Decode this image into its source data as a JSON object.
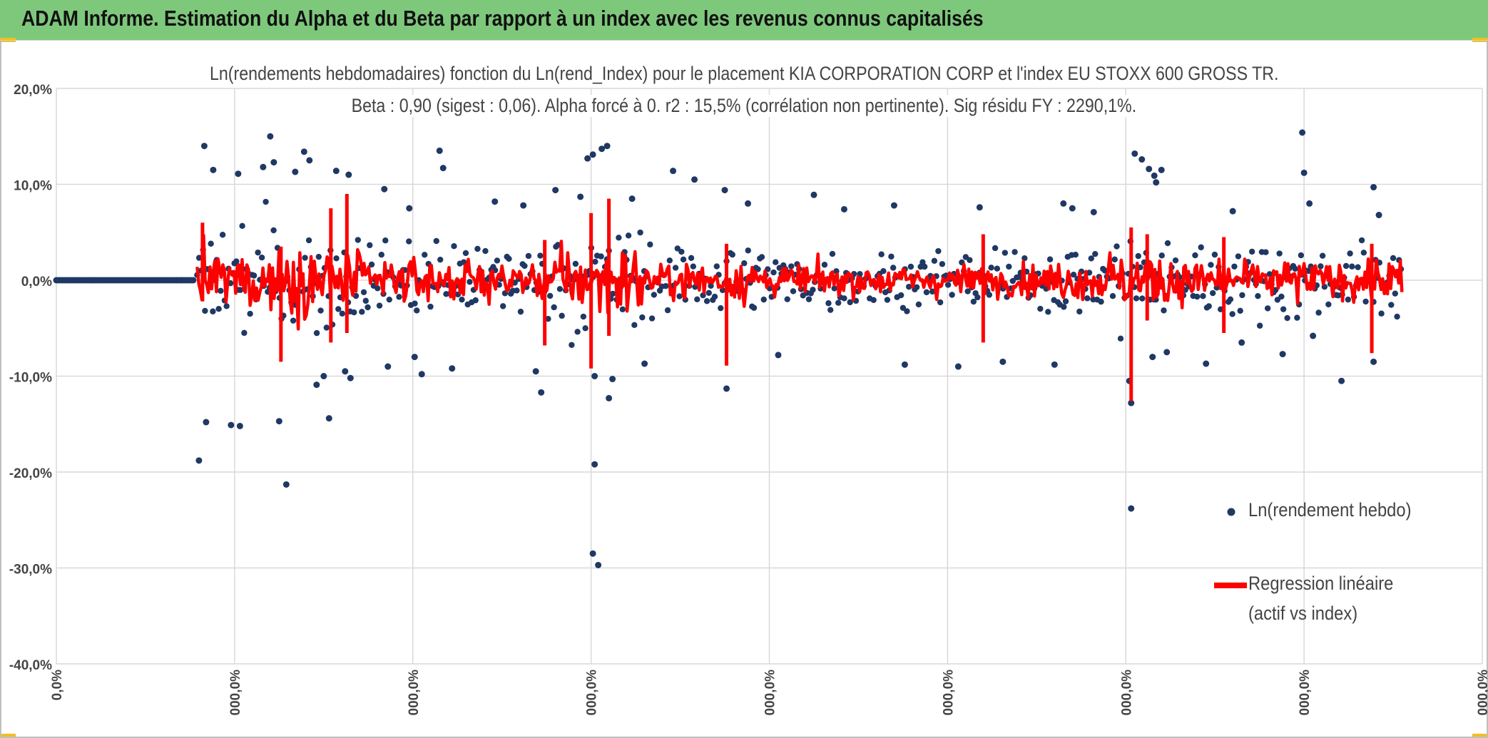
{
  "header": {
    "title": "ADAM Informe. Estimation du Alpha et du Beta par rapport à un index avec les revenus connus capitalisés"
  },
  "chart_data": {
    "type": "scatter",
    "title_line1": "Ln(rendements hebdomadaires) fonction du Ln(rend_Index) pour le placement KIA CORPORATION CORP et l'index EU STOXX 600 GROSS TR.",
    "title_line2": "Beta : 0,90 (sigest : 0,06). Alpha forcé à 0. r2 : 15,5% (corrélation non pertinente). Sig résidu FY : 2290,1%.",
    "y_ticks": [
      "20,0%",
      "10,0%",
      "0,0%",
      "-10,0%",
      "-20,0%",
      "-30,0%",
      "-40,0%"
    ],
    "x_ticks": [
      "0,0%",
      "000,0%",
      "000,0%",
      "000,0%",
      "000,0%",
      "000,0%",
      "000,0%",
      "000,0%",
      "000,0%"
    ],
    "ylim": [
      -40,
      20
    ],
    "x_tick_count": 9,
    "grid": true,
    "legend_position": "right",
    "series": [
      {
        "name": "Ln(rendement hebdo)",
        "kind": "markers",
        "color": "#1f3864",
        "points": [
          [
            8,
            -18.8
          ],
          [
            8.3,
            14.0
          ],
          [
            8.4,
            -14.8
          ],
          [
            8.8,
            11.5
          ],
          [
            9.8,
            -15.1
          ],
          [
            10.2,
            11.1
          ],
          [
            10.3,
            -15.2
          ],
          [
            11.6,
            11.8
          ],
          [
            12.0,
            15.0
          ],
          [
            12.2,
            12.3
          ],
          [
            12.5,
            -14.7
          ],
          [
            12.9,
            -21.3
          ],
          [
            13.4,
            11.3
          ],
          [
            13.9,
            13.4
          ],
          [
            14.2,
            12.5
          ],
          [
            14.6,
            -10.9
          ],
          [
            15.0,
            -10.0
          ],
          [
            15.3,
            -14.4
          ],
          [
            15.7,
            11.4
          ],
          [
            16.2,
            -9.5
          ],
          [
            16.4,
            11.0
          ],
          [
            16.5,
            -10.2
          ],
          [
            20.1,
            -8.0
          ],
          [
            21.5,
            13.5
          ],
          [
            21.7,
            11.7
          ],
          [
            22.2,
            -9.2
          ],
          [
            27.2,
            -11.7
          ],
          [
            29.4,
            8.7
          ],
          [
            29.8,
            12.7
          ],
          [
            30.1,
            13.1
          ],
          [
            30.2,
            -10.0
          ],
          [
            30.4,
            -29.7
          ],
          [
            30.6,
            13.7
          ],
          [
            30.9,
            14.0
          ],
          [
            31.0,
            -12.3
          ],
          [
            31.2,
            -10.3
          ],
          [
            30.1,
            -28.5
          ],
          [
            30.2,
            -19.2
          ],
          [
            32.3,
            8.5
          ],
          [
            34.6,
            11.4
          ],
          [
            35.8,
            10.5
          ],
          [
            37.5,
            9.4
          ],
          [
            37.6,
            -11.3
          ],
          [
            42.5,
            8.9
          ],
          [
            47.0,
            7.8
          ],
          [
            51.8,
            7.6
          ],
          [
            53.1,
            -8.5
          ],
          [
            56.5,
            8.0
          ],
          [
            57.0,
            7.5
          ],
          [
            60.2,
            -10.5
          ],
          [
            60.3,
            -12.8
          ],
          [
            60.3,
            -23.8
          ],
          [
            60.5,
            13.2
          ],
          [
            60.9,
            12.6
          ],
          [
            61.3,
            11.6
          ],
          [
            61.6,
            10.9
          ],
          [
            61.7,
            10.2
          ],
          [
            62.0,
            11.5
          ],
          [
            61.5,
            -8.0
          ],
          [
            62.3,
            -7.5
          ],
          [
            66.5,
            -6.5
          ],
          [
            69.9,
            15.4
          ],
          [
            70.0,
            11.2
          ],
          [
            70.3,
            8.0
          ],
          [
            70.5,
            -5.8
          ],
          [
            72.1,
            -10.5
          ],
          [
            73.9,
            9.7
          ],
          [
            74.2,
            6.8
          ],
          [
            73.9,
            -8.5
          ],
          [
            64.5,
            -8.7
          ],
          [
            56.0,
            -8.8
          ],
          [
            47.6,
            -8.8
          ],
          [
            40.5,
            -7.8
          ],
          [
            38.8,
            8.0
          ],
          [
            26.2,
            7.8
          ],
          [
            20.5,
            -9.8
          ],
          [
            18.6,
            -9.0
          ],
          [
            18.4,
            9.5
          ],
          [
            19.8,
            7.5
          ],
          [
            24.6,
            8.2
          ],
          [
            26.9,
            -9.5
          ],
          [
            28.0,
            9.4
          ],
          [
            33.0,
            -8.7
          ],
          [
            44.2,
            7.4
          ],
          [
            50.6,
            -9.0
          ],
          [
            58.2,
            7.1
          ],
          [
            66.0,
            7.2
          ],
          [
            68.8,
            -7.7
          ]
        ]
      },
      {
        "name": "Regression linéaire (actif vs index)",
        "kind": "line",
        "color": "#ff0000"
      }
    ],
    "legend": {
      "markers_label": "Ln(rendement hebdo)",
      "line_label_1": "Regression linéaire",
      "line_label_2": "(actif vs index)"
    }
  }
}
